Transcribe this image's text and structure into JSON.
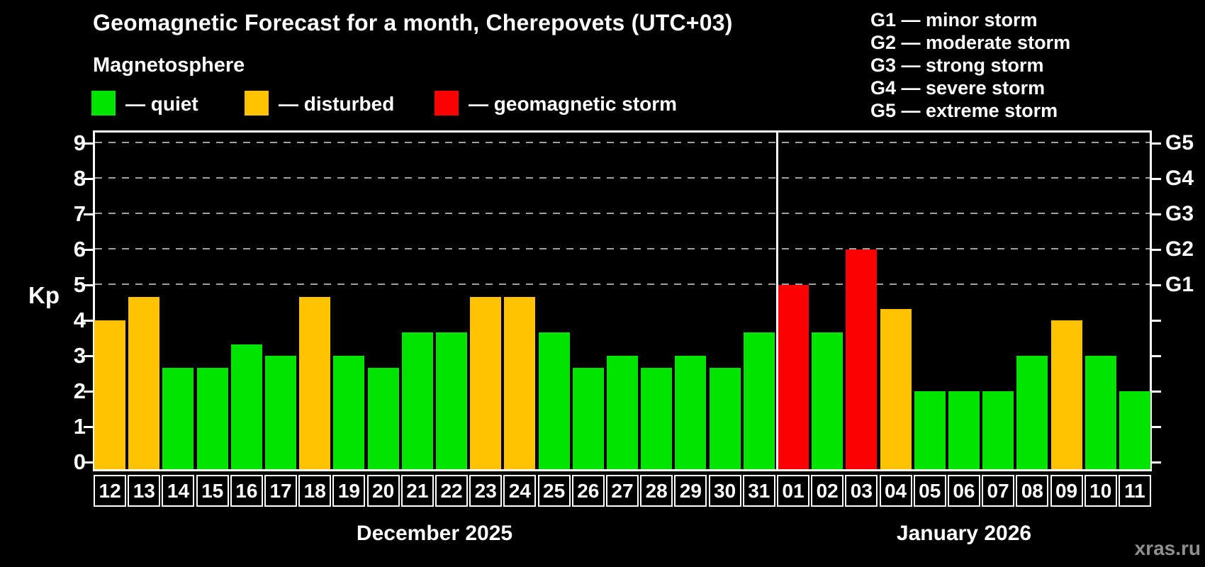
{
  "title": "Geomagnetic Forecast for a month, Cherepovets (UTC+03)",
  "subtitle": "Magnetosphere",
  "legend": {
    "items": [
      {
        "name": "quiet",
        "label": "— quiet",
        "color": "#00e400"
      },
      {
        "name": "disturbed",
        "label": "— disturbed",
        "color": "#ffc200"
      },
      {
        "name": "storm",
        "label": "— geomagnetic storm",
        "color": "#fa0000"
      }
    ]
  },
  "storm_scale": {
    "lines": [
      "G1 — minor storm",
      "G2 — moderate storm",
      "G3 — strong storm",
      "G4 — severe storm",
      "G5 — extreme storm"
    ]
  },
  "watermark": "xras.ru",
  "chart_data": {
    "type": "bar",
    "title": "Geomagnetic Forecast for a month, Cherepovets (UTC+03)",
    "xlabel": "",
    "ylabel": "Kp",
    "ylim": [
      0,
      9.4
    ],
    "grid": "dashed horizontal at Kp 5-9 only",
    "legend_position": "top-left",
    "y_ticks": [
      0,
      1,
      2,
      3,
      4,
      5,
      6,
      7,
      8,
      9
    ],
    "right_axis_labels": [
      {
        "kp": 5,
        "label": "G1"
      },
      {
        "kp": 6,
        "label": "G2"
      },
      {
        "kp": 7,
        "label": "G3"
      },
      {
        "kp": 8,
        "label": "G4"
      },
      {
        "kp": 9,
        "label": "G5"
      }
    ],
    "gridlines_kp": [
      5,
      6,
      7,
      8,
      9
    ],
    "status_colors": {
      "quiet": "#00e400",
      "disturbed": "#ffc200",
      "storm": "#fa0000"
    },
    "categories": [
      "12",
      "13",
      "14",
      "15",
      "16",
      "17",
      "18",
      "19",
      "20",
      "21",
      "22",
      "23",
      "24",
      "25",
      "26",
      "27",
      "28",
      "29",
      "30",
      "31",
      "01",
      "02",
      "03",
      "04",
      "05",
      "06",
      "07",
      "08",
      "09",
      "10",
      "11"
    ],
    "values": [
      4,
      4.67,
      2.67,
      2.67,
      3.33,
      3,
      4.67,
      3,
      2.67,
      3.67,
      3.67,
      4.67,
      4.67,
      3.67,
      2.67,
      3,
      2.67,
      3,
      2.67,
      3.67,
      5,
      3.67,
      6,
      4.33,
      2,
      2,
      2,
      3,
      4,
      3,
      2
    ],
    "statuses": [
      "disturbed",
      "disturbed",
      "quiet",
      "quiet",
      "quiet",
      "quiet",
      "disturbed",
      "quiet",
      "quiet",
      "quiet",
      "quiet",
      "disturbed",
      "disturbed",
      "quiet",
      "quiet",
      "quiet",
      "quiet",
      "quiet",
      "quiet",
      "quiet",
      "storm",
      "quiet",
      "storm",
      "disturbed",
      "quiet",
      "quiet",
      "quiet",
      "quiet",
      "disturbed",
      "quiet",
      "quiet"
    ],
    "months": [
      {
        "label": "December 2025",
        "num_days": 20
      },
      {
        "label": "January 2026",
        "num_days": 11
      }
    ]
  }
}
